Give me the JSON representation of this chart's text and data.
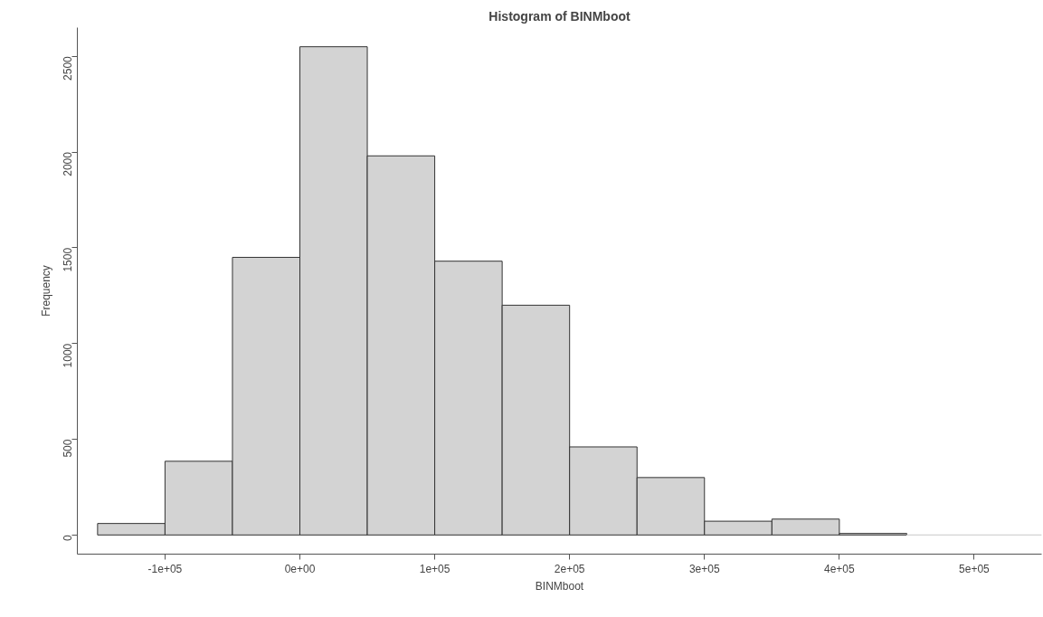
{
  "chart_data": {
    "type": "histogram",
    "title": "Histogram of BINMboot",
    "xlabel": "BINMboot",
    "ylabel": "Frequency",
    "bins": [
      -150000,
      -100000,
      -50000,
      0,
      50000,
      100000,
      150000,
      200000,
      250000,
      300000,
      350000,
      400000,
      450000,
      500000,
      550000
    ],
    "values": [
      60,
      385,
      1450,
      2550,
      1980,
      1430,
      1200,
      460,
      300,
      72,
      83,
      8,
      0,
      0
    ],
    "color": "#d3d3d3",
    "xlim": [
      -165000,
      550000
    ],
    "ylim": [
      -100,
      2650
    ],
    "xticks": [
      {
        "value": -100000,
        "label": "-1e+05"
      },
      {
        "value": 0,
        "label": "0e+00"
      },
      {
        "value": 100000,
        "label": "1e+05"
      },
      {
        "value": 200000,
        "label": "2e+05"
      },
      {
        "value": 300000,
        "label": "3e+05"
      },
      {
        "value": 400000,
        "label": "4e+05"
      },
      {
        "value": 500000,
        "label": "5e+05"
      }
    ],
    "yticks": [
      0,
      500,
      1000,
      1500,
      2000,
      2500
    ],
    "grid": false
  }
}
